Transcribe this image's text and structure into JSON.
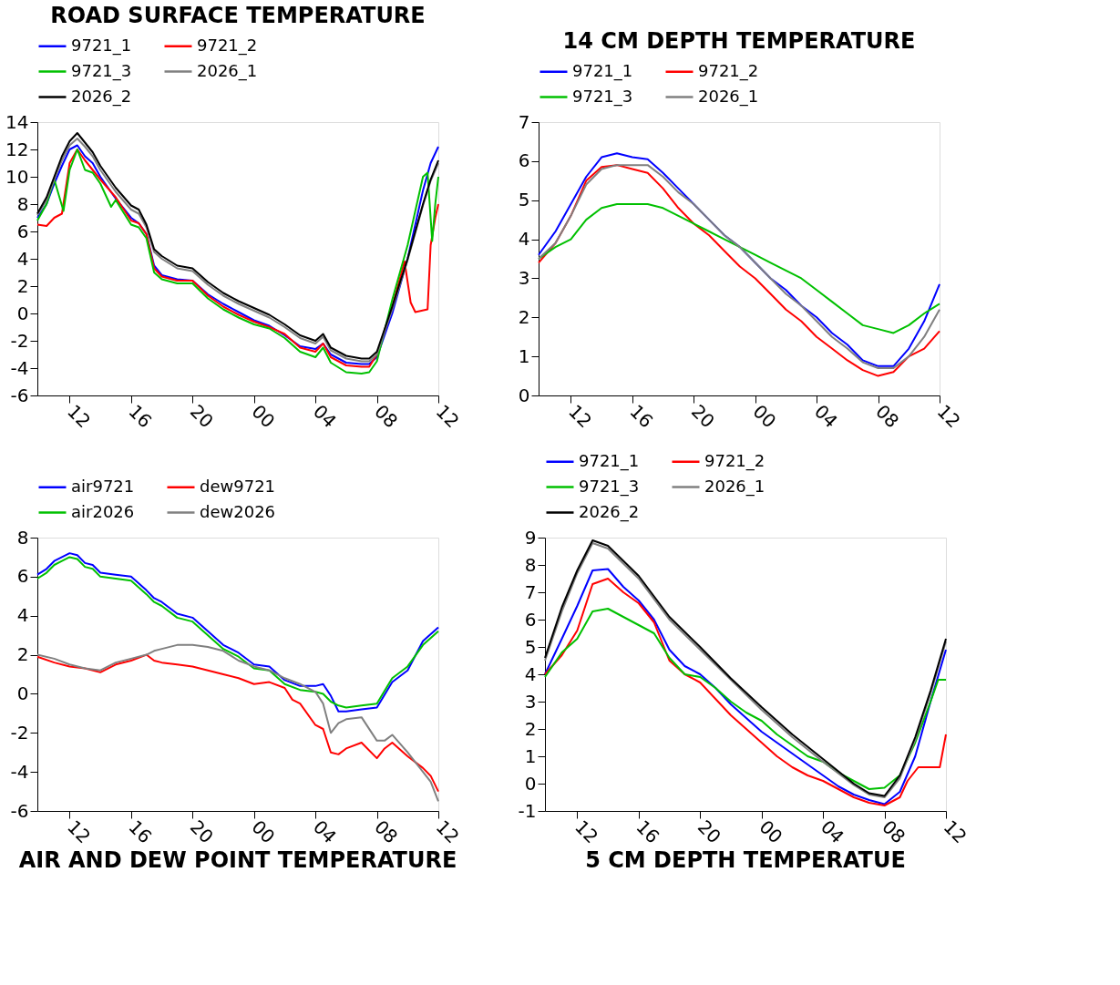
{
  "chart_data": [
    {
      "type": "line",
      "title": "ROAD SURFACE TEMPERATURE",
      "xlim": [
        9.9,
        36
      ],
      "ylim": [
        -6,
        14
      ],
      "yticks": [
        -6,
        -4,
        -2,
        0,
        2,
        4,
        6,
        8,
        10,
        12,
        14
      ],
      "xticks": [
        {
          "value": 12,
          "label": "12"
        },
        {
          "value": 16,
          "label": "16"
        },
        {
          "value": 20,
          "label": "20"
        },
        {
          "value": 24,
          "label": "00"
        },
        {
          "value": 28,
          "label": "04"
        },
        {
          "value": 32,
          "label": "08"
        },
        {
          "value": 36,
          "label": "12"
        }
      ],
      "legend": "top",
      "grid": false,
      "marker": "none",
      "line_style": "solid",
      "series": [
        {
          "name": "9721_1",
          "color": "#0000ff",
          "x": [
            9.9,
            10.5,
            11,
            11.5,
            12,
            12.5,
            13,
            13.5,
            14,
            15,
            16,
            16.5,
            17,
            17.5,
            18,
            19,
            20,
            21,
            22,
            23,
            24,
            25,
            26,
            27,
            28,
            28.5,
            29,
            30,
            31,
            31.5,
            32,
            33,
            34,
            35,
            35.5,
            36
          ],
          "values": [
            7,
            8,
            9.5,
            10.8,
            12,
            12.3,
            11.5,
            11,
            10,
            8.4,
            7,
            6.6,
            5.8,
            3.5,
            2.8,
            2.5,
            2.4,
            1.4,
            0.7,
            0.1,
            -0.5,
            -0.9,
            -1.6,
            -2.4,
            -2.6,
            -2.2,
            -3,
            -3.6,
            -3.7,
            -3.7,
            -3.2,
            0,
            4,
            9,
            11,
            12.2
          ]
        },
        {
          "name": "9721_2",
          "color": "#ff0000",
          "x": [
            9.9,
            10.5,
            11,
            11.5,
            12,
            12.5,
            13,
            13.5,
            14,
            15,
            16,
            16.5,
            17,
            17.5,
            18,
            19,
            20,
            21,
            22,
            23,
            24,
            25,
            26,
            27,
            28,
            28.5,
            29,
            30,
            31,
            31.5,
            32,
            33,
            33.8,
            34.2,
            34.5,
            35.3,
            35.5,
            35.8,
            36
          ],
          "values": [
            6.5,
            6.4,
            7,
            7.3,
            11,
            12,
            11.2,
            10.5,
            9.8,
            8.5,
            6.8,
            6.6,
            5.8,
            3.3,
            2.7,
            2.4,
            2.4,
            1.3,
            0.5,
            -0.1,
            -0.6,
            -1,
            -1.5,
            -2.5,
            -2.8,
            -2.2,
            -3.2,
            -3.8,
            -3.9,
            -3.9,
            -3,
            0.5,
            3.8,
            0.8,
            0.1,
            0.3,
            5,
            7,
            8
          ]
        },
        {
          "name": "9721_3",
          "color": "#00c000",
          "x": [
            9.9,
            10.5,
            11,
            11.6,
            12,
            12.5,
            13,
            13.5,
            14,
            14.7,
            15,
            16,
            16.5,
            17,
            17.5,
            18,
            19,
            20,
            21,
            22,
            23,
            24,
            25,
            26,
            27,
            28,
            28.5,
            29,
            30,
            31,
            31.5,
            32,
            33,
            34,
            35,
            35.3,
            35.6,
            35.8,
            36
          ],
          "values": [
            6.8,
            8,
            9.8,
            7.5,
            10.5,
            12,
            10.5,
            10.3,
            9.5,
            7.8,
            8.3,
            6.5,
            6.3,
            5.5,
            3,
            2.5,
            2.2,
            2.2,
            1.1,
            0.3,
            -0.3,
            -0.8,
            -1.1,
            -1.8,
            -2.8,
            -3.2,
            -2.5,
            -3.6,
            -4.3,
            -4.4,
            -4.3,
            -3.5,
            1,
            5,
            10,
            10.3,
            5.3,
            8,
            10
          ]
        },
        {
          "name": "2026_1",
          "color": "#808080",
          "x": [
            9.9,
            10.5,
            11,
            11.5,
            12,
            12.5,
            13,
            13.5,
            14,
            15,
            16,
            16.5,
            17,
            17.5,
            18,
            19,
            20,
            21,
            22,
            23,
            24,
            25,
            26,
            27,
            28,
            28.5,
            29,
            30,
            31,
            31.5,
            32,
            33,
            34,
            35,
            35.5,
            36
          ],
          "values": [
            7.2,
            8.3,
            9.8,
            11.2,
            12.3,
            12.8,
            12.2,
            11.5,
            10.5,
            8.9,
            7.6,
            7.3,
            6.3,
            4.5,
            4,
            3.3,
            3.1,
            2.1,
            1.3,
            0.7,
            0.2,
            -0.3,
            -1,
            -1.8,
            -2.2,
            -1.7,
            -2.7,
            -3.3,
            -3.5,
            -3.5,
            -3,
            0.3,
            3.9,
            7.9,
            9.7,
            11
          ]
        },
        {
          "name": "2026_2",
          "color": "#000000",
          "x": [
            9.9,
            10.5,
            11,
            11.5,
            12,
            12.5,
            13,
            13.5,
            14,
            15,
            16,
            16.5,
            17,
            17.5,
            18,
            19,
            20,
            21,
            22,
            23,
            24,
            25,
            26,
            27,
            28,
            28.5,
            29,
            30,
            31,
            31.5,
            32,
            33,
            34,
            35,
            35.5,
            36
          ],
          "values": [
            7.3,
            8.5,
            10,
            11.5,
            12.6,
            13.2,
            12.5,
            11.8,
            10.8,
            9.2,
            7.9,
            7.6,
            6.5,
            4.7,
            4.2,
            3.5,
            3.3,
            2.3,
            1.5,
            0.9,
            0.4,
            -0.1,
            -0.8,
            -1.6,
            -2,
            -1.5,
            -2.5,
            -3.1,
            -3.3,
            -3.3,
            -2.8,
            0.5,
            4,
            8,
            9.8,
            11.2
          ]
        }
      ]
    },
    {
      "type": "line",
      "title": "14 CM DEPTH TEMPERATURE",
      "xlim": [
        9.9,
        36
      ],
      "ylim": [
        0,
        7
      ],
      "yticks": [
        0,
        1,
        2,
        3,
        4,
        5,
        6,
        7
      ],
      "xticks": [
        {
          "value": 12,
          "label": "12"
        },
        {
          "value": 16,
          "label": "16"
        },
        {
          "value": 20,
          "label": "20"
        },
        {
          "value": 24,
          "label": "00"
        },
        {
          "value": 28,
          "label": "04"
        },
        {
          "value": 32,
          "label": "08"
        },
        {
          "value": 36,
          "label": "12"
        }
      ],
      "legend": "top",
      "grid": false,
      "marker": "none",
      "line_style": "solid",
      "series": [
        {
          "name": "9721_1",
          "color": "#0000ff",
          "x": [
            9.9,
            11,
            12,
            13,
            14,
            15,
            16,
            17,
            18,
            19,
            20,
            21,
            22,
            23,
            24,
            25,
            26,
            27,
            28,
            29,
            30,
            31,
            32,
            33,
            34,
            35,
            36
          ],
          "values": [
            3.6,
            4.2,
            4.9,
            5.6,
            6.1,
            6.2,
            6.1,
            6.05,
            5.7,
            5.3,
            4.9,
            4.5,
            4.1,
            3.8,
            3.4,
            3,
            2.7,
            2.3,
            2,
            1.6,
            1.3,
            0.9,
            0.75,
            0.75,
            1.2,
            1.9,
            2.85
          ]
        },
        {
          "name": "9721_2",
          "color": "#ff0000",
          "x": [
            9.9,
            11,
            12,
            13,
            14,
            15,
            16,
            17,
            18,
            19,
            20,
            21,
            22,
            23,
            24,
            25,
            26,
            27,
            28,
            29,
            30,
            31,
            32,
            33,
            34,
            35,
            36
          ],
          "values": [
            3.4,
            3.9,
            4.6,
            5.5,
            5.85,
            5.9,
            5.8,
            5.7,
            5.3,
            4.8,
            4.4,
            4.1,
            3.7,
            3.3,
            3,
            2.6,
            2.2,
            1.9,
            1.5,
            1.2,
            0.9,
            0.65,
            0.5,
            0.6,
            1,
            1.2,
            1.65
          ]
        },
        {
          "name": "9721_3",
          "color": "#00c000",
          "x": [
            9.9,
            11,
            12,
            13,
            14,
            15,
            16,
            17,
            18,
            19,
            20,
            21,
            22,
            23,
            24,
            25,
            26,
            27,
            28,
            29,
            30,
            31,
            32,
            33,
            34,
            35,
            36
          ],
          "values": [
            3.5,
            3.8,
            4,
            4.5,
            4.8,
            4.9,
            4.9,
            4.9,
            4.8,
            4.6,
            4.4,
            4.2,
            4,
            3.8,
            3.6,
            3.4,
            3.2,
            3,
            2.7,
            2.4,
            2.1,
            1.8,
            1.7,
            1.6,
            1.8,
            2.1,
            2.35
          ]
        },
        {
          "name": "2026_1",
          "color": "#808080",
          "x": [
            9.9,
            11,
            12,
            13,
            14,
            15,
            16,
            17,
            18,
            19,
            20,
            21,
            22,
            23,
            24,
            25,
            26,
            27,
            28,
            29,
            30,
            31,
            32,
            33,
            34,
            35,
            36
          ],
          "values": [
            3.5,
            3.9,
            4.6,
            5.4,
            5.8,
            5.9,
            5.9,
            5.9,
            5.6,
            5.2,
            4.9,
            4.5,
            4.1,
            3.8,
            3.4,
            3,
            2.6,
            2.3,
            1.9,
            1.5,
            1.2,
            0.85,
            0.7,
            0.7,
            1,
            1.5,
            2.2
          ]
        }
      ]
    },
    {
      "type": "line",
      "title": "AIR AND DEW POINT TEMPERATURE",
      "xlim": [
        9.9,
        36
      ],
      "ylim": [
        -6,
        8
      ],
      "yticks": [
        -6,
        -4,
        -2,
        0,
        2,
        4,
        6,
        8
      ],
      "xticks": [
        {
          "value": 12,
          "label": "12"
        },
        {
          "value": 16,
          "label": "16"
        },
        {
          "value": 20,
          "label": "20"
        },
        {
          "value": 24,
          "label": "00"
        },
        {
          "value": 28,
          "label": "04"
        },
        {
          "value": 32,
          "label": "08"
        },
        {
          "value": 36,
          "label": "12"
        }
      ],
      "legend": "top",
      "grid": false,
      "marker": "none",
      "line_style": "solid",
      "series": [
        {
          "name": "air9721",
          "color": "#0000ff",
          "x": [
            9.9,
            10.5,
            11,
            11.5,
            12,
            12.5,
            13,
            13.5,
            14,
            15,
            16,
            17,
            17.5,
            18,
            19,
            20,
            21,
            22,
            23,
            24,
            25,
            26,
            27,
            28,
            28.5,
            29,
            29.5,
            30,
            31,
            32,
            33,
            34,
            35,
            36
          ],
          "values": [
            6.1,
            6.4,
            6.8,
            7,
            7.2,
            7.1,
            6.7,
            6.6,
            6.2,
            6.1,
            6,
            5.3,
            4.9,
            4.7,
            4.1,
            3.9,
            3.2,
            2.5,
            2.1,
            1.5,
            1.4,
            0.7,
            0.4,
            0.4,
            0.5,
            -0.1,
            -0.9,
            -0.9,
            -0.8,
            -0.7,
            0.6,
            1.2,
            2.7,
            3.4
          ]
        },
        {
          "name": "dew9721",
          "color": "#ff0000",
          "x": [
            9.9,
            11,
            12,
            13,
            14,
            15,
            16,
            17,
            17.5,
            18,
            19,
            20,
            21,
            22,
            23,
            24,
            25,
            26,
            26.5,
            27,
            28,
            28.5,
            29,
            29.5,
            30,
            31,
            32,
            32.5,
            33,
            34,
            35,
            35.5,
            36
          ],
          "values": [
            1.9,
            1.6,
            1.4,
            1.3,
            1.1,
            1.5,
            1.7,
            2,
            1.7,
            1.6,
            1.5,
            1.4,
            1.2,
            1,
            0.8,
            0.5,
            0.6,
            0.3,
            -0.3,
            -0.5,
            -1.6,
            -1.8,
            -3,
            -3.1,
            -2.8,
            -2.5,
            -3.3,
            -2.8,
            -2.5,
            -3.2,
            -3.8,
            -4.2,
            -5
          ]
        },
        {
          "name": "air2026",
          "color": "#00c000",
          "x": [
            9.9,
            10.5,
            11,
            11.5,
            12,
            12.5,
            13,
            13.5,
            14,
            15,
            16,
            17,
            17.5,
            18,
            19,
            20,
            21,
            22,
            23,
            24,
            25,
            26,
            27,
            28,
            28.5,
            29,
            29.5,
            30,
            31,
            32,
            33,
            34,
            35,
            36
          ],
          "values": [
            5.9,
            6.2,
            6.6,
            6.8,
            7,
            6.9,
            6.5,
            6.4,
            6,
            5.9,
            5.8,
            5.1,
            4.7,
            4.5,
            3.9,
            3.7,
            3,
            2.3,
            1.9,
            1.3,
            1.2,
            0.5,
            0.2,
            0.1,
            0,
            -0.4,
            -0.6,
            -0.7,
            -0.6,
            -0.5,
            0.8,
            1.4,
            2.5,
            3.2
          ]
        },
        {
          "name": "dew2026",
          "color": "#808080",
          "x": [
            9.9,
            11,
            12,
            13,
            14,
            15,
            16,
            17,
            17.5,
            18,
            19,
            20,
            21,
            22,
            23,
            24,
            25,
            26,
            27,
            28,
            28.5,
            29,
            29.5,
            30,
            31,
            32,
            32.5,
            33,
            34,
            35,
            35.5,
            36
          ],
          "values": [
            2,
            1.8,
            1.5,
            1.3,
            1.2,
            1.6,
            1.8,
            2,
            2.2,
            2.3,
            2.5,
            2.5,
            2.4,
            2.2,
            1.7,
            1.4,
            1.2,
            0.8,
            0.5,
            0.1,
            -0.5,
            -2,
            -1.5,
            -1.3,
            -1.2,
            -2.4,
            -2.4,
            -2.1,
            -3,
            -4,
            -4.5,
            -5.5
          ]
        }
      ]
    },
    {
      "type": "line",
      "title": "5 CM DEPTH TEMPERATUE",
      "xlim": [
        9.9,
        36
      ],
      "ylim": [
        -1,
        9
      ],
      "yticks": [
        -1,
        0,
        1,
        2,
        3,
        4,
        5,
        6,
        7,
        8,
        9
      ],
      "xticks": [
        {
          "value": 12,
          "label": "12"
        },
        {
          "value": 16,
          "label": "16"
        },
        {
          "value": 20,
          "label": "20"
        },
        {
          "value": 24,
          "label": "00"
        },
        {
          "value": 28,
          "label": "04"
        },
        {
          "value": 32,
          "label": "08"
        },
        {
          "value": 36,
          "label": "12"
        }
      ],
      "legend": "top",
      "grid": false,
      "marker": "none",
      "line_style": "solid",
      "series": [
        {
          "name": "9721_1",
          "color": "#0000ff",
          "x": [
            9.9,
            11,
            12,
            13,
            14,
            15,
            16,
            17,
            18,
            19,
            20,
            21,
            22,
            23,
            24,
            25,
            26,
            27,
            28,
            29,
            30,
            31,
            32,
            33,
            34,
            35,
            36
          ],
          "values": [
            4,
            5.3,
            6.5,
            7.8,
            7.85,
            7.2,
            6.7,
            6,
            4.9,
            4.3,
            4,
            3.5,
            2.9,
            2.4,
            1.9,
            1.5,
            1.1,
            0.7,
            0.3,
            -0.1,
            -0.4,
            -0.6,
            -0.75,
            -0.3,
            1,
            3,
            4.9
          ]
        },
        {
          "name": "9721_2",
          "color": "#ff0000",
          "x": [
            9.9,
            11,
            12,
            13,
            14,
            15,
            16,
            17,
            18,
            19,
            20,
            21,
            22,
            23,
            24,
            25,
            26,
            27,
            28,
            29,
            30,
            31,
            32,
            33,
            33.5,
            34.2,
            35,
            35.6,
            36
          ],
          "values": [
            4,
            4.7,
            5.6,
            7.3,
            7.5,
            7,
            6.6,
            5.9,
            4.5,
            4,
            3.7,
            3.1,
            2.5,
            2,
            1.5,
            1,
            0.6,
            0.3,
            0.1,
            -0.2,
            -0.5,
            -0.7,
            -0.8,
            -0.5,
            0.1,
            0.6,
            0.6,
            0.6,
            1.8
          ]
        },
        {
          "name": "9721_3",
          "color": "#00c000",
          "x": [
            9.9,
            11,
            12,
            12.5,
            13,
            14,
            15,
            16,
            17,
            18,
            19,
            20,
            21,
            22,
            23,
            24,
            25,
            26,
            27,
            28,
            29,
            30,
            31,
            32,
            33,
            34,
            35,
            35.5,
            36
          ],
          "values": [
            3.9,
            4.8,
            5.3,
            5.8,
            6.3,
            6.4,
            6.1,
            5.8,
            5.5,
            4.6,
            4,
            3.9,
            3.5,
            3,
            2.6,
            2.3,
            1.8,
            1.4,
            1,
            0.8,
            0.4,
            0.1,
            -0.2,
            -0.15,
            0.3,
            1.5,
            3,
            3.8,
            3.8
          ]
        },
        {
          "name": "2026_1",
          "color": "#808080",
          "x": [
            9.9,
            11,
            12,
            13,
            14,
            16,
            18,
            20,
            22,
            24,
            26,
            28,
            30,
            31,
            32,
            33,
            34,
            35,
            36
          ],
          "values": [
            4.5,
            6.3,
            7.7,
            8.8,
            8.6,
            7.5,
            6,
            4.9,
            3.8,
            2.7,
            1.7,
            0.8,
            -0.05,
            -0.4,
            -0.5,
            0.2,
            1.6,
            3.3,
            5.2
          ]
        },
        {
          "name": "2026_2",
          "color": "#000000",
          "x": [
            9.9,
            11,
            12,
            13,
            14,
            16,
            18,
            20,
            22,
            24,
            26,
            28,
            30,
            31,
            32,
            33,
            34,
            35,
            36
          ],
          "values": [
            4.6,
            6.45,
            7.8,
            8.9,
            8.7,
            7.6,
            6.1,
            5,
            3.85,
            2.8,
            1.8,
            0.9,
            0,
            -0.35,
            -0.45,
            0.3,
            1.7,
            3.4,
            5.3
          ]
        }
      ]
    }
  ]
}
